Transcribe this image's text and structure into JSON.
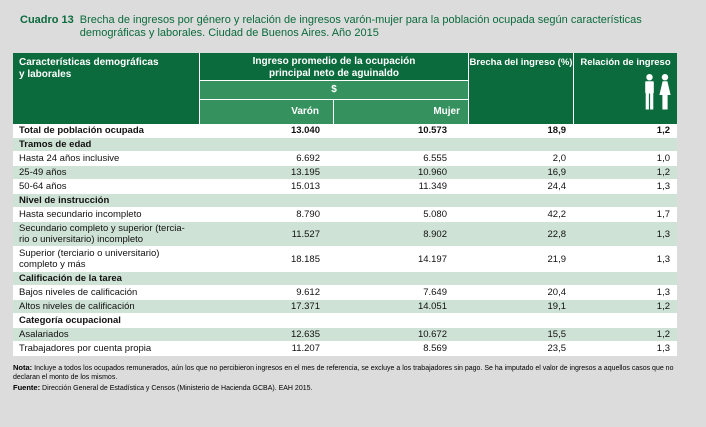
{
  "colors": {
    "page_bg": "#DCDCDC",
    "header_green": "#0B6B3C",
    "subheader_green": "#35925F",
    "stripe_green": "#CFE2D6",
    "title_green": "#0B6B3C"
  },
  "title": {
    "label": "Cuadro 13",
    "line1": "Brecha de ingresos por género y relación de ingresos varón-mujer para la población ocupada según características",
    "line2": "demográficas y laborales. Ciudad de Buenos Aires. Año 2015"
  },
  "table": {
    "header": {
      "col1_line1": "Características demográficas",
      "col1_line2": "y laborales",
      "col2": "Ingreso promedio de la ocupación principal neto de aguinaldo",
      "currency": "$",
      "male": "Varón",
      "female": "Mujer",
      "col3": "Brecha del ingreso (%)",
      "col4": "Relación de ingreso"
    },
    "rows": [
      {
        "type": "data",
        "bold": true,
        "label": "Total de población ocupada",
        "varon": "13.040",
        "mujer": "10.573",
        "brecha": "18,9",
        "relacion": "1,2"
      },
      {
        "type": "section",
        "label": "Tramos de edad"
      },
      {
        "type": "data",
        "label": "Hasta 24 años inclusive",
        "varon": "6.692",
        "mujer": "6.555",
        "brecha": "2,0",
        "relacion": "1,0"
      },
      {
        "type": "data",
        "label": "25-49 años",
        "varon": "13.195",
        "mujer": "10.960",
        "brecha": "16,9",
        "relacion": "1,2"
      },
      {
        "type": "data",
        "label": "50-64 años",
        "varon": "15.013",
        "mujer": "11.349",
        "brecha": "24,4",
        "relacion": "1,3"
      },
      {
        "type": "section",
        "label": "Nivel de instrucción"
      },
      {
        "type": "data",
        "label": "Hasta secundario incompleto",
        "varon": "8.790",
        "mujer": "5.080",
        "brecha": "42,2",
        "relacion": "1,7"
      },
      {
        "type": "data",
        "label": "Secundario completo y superior (tercia-",
        "label2": "rio o universitario) incompleto",
        "varon": "11.527",
        "mujer": "8.902",
        "brecha": "22,8",
        "relacion": "1,3"
      },
      {
        "type": "data",
        "label": "Superior (terciario o universitario)",
        "label2": "completo y más",
        "varon": "18.185",
        "mujer": "14.197",
        "brecha": "21,9",
        "relacion": "1,3"
      },
      {
        "type": "section",
        "label": "Calificación de la tarea"
      },
      {
        "type": "data",
        "label": "Bajos niveles de calificación",
        "varon": "9.612",
        "mujer": "7.649",
        "brecha": "20,4",
        "relacion": "1,3"
      },
      {
        "type": "data",
        "label": "Altos niveles de calificación",
        "varon": "17.371",
        "mujer": "14.051",
        "brecha": "19,1",
        "relacion": "1,2"
      },
      {
        "type": "section",
        "label": "Categoría ocupacional"
      },
      {
        "type": "data",
        "label": "Asalariados",
        "varon": "12.635",
        "mujer": "10.672",
        "brecha": "15,5",
        "relacion": "1,2"
      },
      {
        "type": "data",
        "label": "Trabajadores por cuenta propia",
        "varon": "11.207",
        "mujer": "8.569",
        "brecha": "23,5",
        "relacion": "1,3"
      }
    ]
  },
  "footer": {
    "nota_label": "Nota:",
    "nota_text": "Incluye a todos los ocupados remunerados, aún los que no percibieron ingresos en el mes de referencia, se excluye a los trabajadores sin pago. Se ha imputado el valor de ingresos a aquellos casos que no declaran el monto de los mismos.",
    "fuente_label": "Fuente:",
    "fuente_text": "Dirección General de Estadística y Censos (Ministerio de Hacienda GCBA). EAH 2015."
  },
  "chart_data": {
    "type": "table",
    "title": "Cuadro 13. Brecha de ingresos por género y relación de ingresos varón-mujer para la población ocupada según características demográficas y laborales. Ciudad de Buenos Aires. Año 2015",
    "columns": [
      "Características demográficas y laborales",
      "Ingreso promedio varón ($)",
      "Ingreso promedio mujer ($)",
      "Brecha del ingreso (%)",
      "Relación de ingreso"
    ],
    "groups": [
      {
        "section": null,
        "rows": [
          [
            "Total de población ocupada",
            13040,
            10573,
            18.9,
            1.2
          ]
        ]
      },
      {
        "section": "Tramos de edad",
        "rows": [
          [
            "Hasta 24 años inclusive",
            6692,
            6555,
            2.0,
            1.0
          ],
          [
            "25-49 años",
            13195,
            10960,
            16.9,
            1.2
          ],
          [
            "50-64 años",
            15013,
            11349,
            24.4,
            1.3
          ]
        ]
      },
      {
        "section": "Nivel de instrucción",
        "rows": [
          [
            "Hasta secundario incompleto",
            8790,
            5080,
            42.2,
            1.7
          ],
          [
            "Secundario completo y superior (terciario o universitario) incompleto",
            11527,
            8902,
            22.8,
            1.3
          ],
          [
            "Superior (terciario o universitario) completo y más",
            18185,
            14197,
            21.9,
            1.3
          ]
        ]
      },
      {
        "section": "Calificación de la tarea",
        "rows": [
          [
            "Bajos niveles de calificación",
            9612,
            7649,
            20.4,
            1.3
          ],
          [
            "Altos niveles de calificación",
            17371,
            14051,
            19.1,
            1.2
          ]
        ]
      },
      {
        "section": "Categoría ocupacional",
        "rows": [
          [
            "Asalariados",
            12635,
            10672,
            15.5,
            1.2
          ],
          [
            "Trabajadores por cuenta propia",
            11207,
            8569,
            23.5,
            1.3
          ]
        ]
      }
    ]
  }
}
